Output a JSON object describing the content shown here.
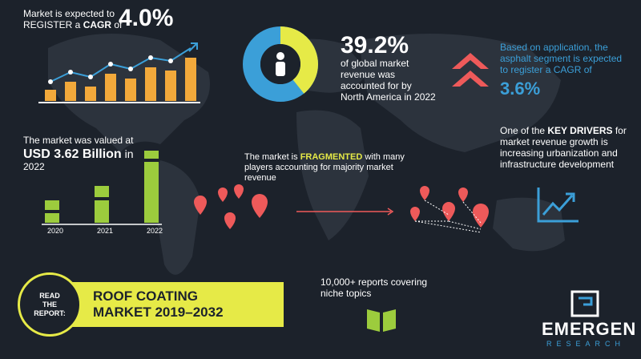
{
  "cagr": {
    "line1": "Market is expected to",
    "line2_prefix": "REGISTER a ",
    "line2_bold": "CAGR",
    "line2_suffix": " of",
    "value": "4.0%"
  },
  "share": {
    "value": "39.2%",
    "text": "of global market revenue was accounted for by North America in 2022",
    "donut_fraction": 0.392
  },
  "application": {
    "text": "Based on application, the asphalt segment is expected to register a CAGR of",
    "value": "3.6%"
  },
  "drivers": {
    "prefix": "One of the ",
    "bold": "KEY DRIVERS",
    "suffix": " for market revenue growth is increasing urbanization and infrastructure development"
  },
  "valuation": {
    "line1": "The market was valued at",
    "value": "USD 3.62 Billion",
    "suffix": " in",
    "year": "2022"
  },
  "fragmented": {
    "prefix": "The market is ",
    "bold": "FRAGMENTED",
    "suffix": " with many players accounting for majority market revenue"
  },
  "reports": {
    "text": "10,000+ reports covering niche topics"
  },
  "read": {
    "line1": "READ",
    "line2": "THE",
    "line3": "REPORT:"
  },
  "banner": {
    "line1": "ROOF COATING",
    "line2": "MARKET 2019–2032"
  },
  "logo": {
    "name": "EMERGEN",
    "sub": "RESEARCH"
  },
  "bar_years": [
    "2020",
    "2021",
    "2022"
  ],
  "colors": {
    "yellow": "#e6ea47",
    "orange": "#f2a93b",
    "blue": "#3b9fd8",
    "red": "#ee5a5a",
    "green": "#9ccc3d",
    "bg": "#1c222b"
  }
}
